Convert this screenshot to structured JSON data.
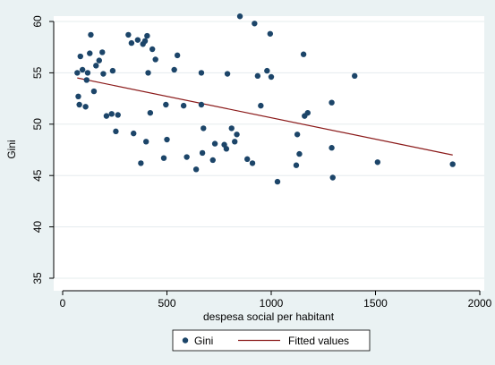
{
  "chart_data": {
    "type": "scatter",
    "title": "",
    "xlabel": "despesa social per habitant",
    "ylabel": "Gini",
    "xlim": [
      0,
      2000
    ],
    "ylim": [
      35,
      60
    ],
    "x_ticks": [
      0,
      500,
      1000,
      1500,
      2000
    ],
    "y_ticks": [
      35,
      40,
      45,
      50,
      55,
      60
    ],
    "grid": true,
    "legend_position": "bottom",
    "colors": {
      "background": "#eaf2f3",
      "plot_area": "#ffffff",
      "grid": "#e5ecee",
      "scatter": "#1c4569",
      "fit_line": "#8b1a1a"
    },
    "series": [
      {
        "name": "Gini",
        "kind": "scatter",
        "points": [
          [
            70,
            55.0
          ],
          [
            75,
            52.7
          ],
          [
            80,
            51.9
          ],
          [
            85,
            56.6
          ],
          [
            95,
            55.3
          ],
          [
            110,
            51.7
          ],
          [
            115,
            54.3
          ],
          [
            120,
            55.0
          ],
          [
            130,
            56.9
          ],
          [
            135,
            58.7
          ],
          [
            150,
            53.2
          ],
          [
            160,
            55.7
          ],
          [
            175,
            56.2
          ],
          [
            190,
            57.0
          ],
          [
            195,
            54.9
          ],
          [
            210,
            50.8
          ],
          [
            235,
            51.0
          ],
          [
            240,
            55.2
          ],
          [
            255,
            49.3
          ],
          [
            265,
            50.9
          ],
          [
            315,
            58.7
          ],
          [
            330,
            57.9
          ],
          [
            340,
            49.1
          ],
          [
            360,
            58.2
          ],
          [
            375,
            46.2
          ],
          [
            385,
            57.8
          ],
          [
            395,
            58.1
          ],
          [
            400,
            48.3
          ],
          [
            405,
            58.6
          ],
          [
            410,
            55.0
          ],
          [
            420,
            51.1
          ],
          [
            430,
            57.3
          ],
          [
            445,
            56.3
          ],
          [
            485,
            46.7
          ],
          [
            495,
            51.9
          ],
          [
            500,
            48.5
          ],
          [
            535,
            55.3
          ],
          [
            550,
            56.7
          ],
          [
            580,
            51.8
          ],
          [
            595,
            46.8
          ],
          [
            640,
            45.6
          ],
          [
            665,
            55.0
          ],
          [
            665,
            51.9
          ],
          [
            670,
            47.2
          ],
          [
            675,
            49.6
          ],
          [
            720,
            46.5
          ],
          [
            730,
            48.1
          ],
          [
            775,
            48.0
          ],
          [
            785,
            47.6
          ],
          [
            790,
            54.9
          ],
          [
            810,
            49.6
          ],
          [
            825,
            48.3
          ],
          [
            835,
            49.0
          ],
          [
            850,
            60.5
          ],
          [
            885,
            46.6
          ],
          [
            910,
            46.2
          ],
          [
            920,
            59.8
          ],
          [
            935,
            54.7
          ],
          [
            950,
            51.8
          ],
          [
            980,
            55.2
          ],
          [
            995,
            58.8
          ],
          [
            1000,
            54.6
          ],
          [
            1030,
            44.4
          ],
          [
            1120,
            46.0
          ],
          [
            1125,
            49.0
          ],
          [
            1135,
            47.1
          ],
          [
            1155,
            56.8
          ],
          [
            1160,
            50.8
          ],
          [
            1175,
            51.1
          ],
          [
            1290,
            47.7
          ],
          [
            1290,
            52.1
          ],
          [
            1295,
            44.8
          ],
          [
            1400,
            54.7
          ],
          [
            1510,
            46.3
          ],
          [
            1870,
            46.1
          ]
        ]
      },
      {
        "name": "Fitted values",
        "kind": "line",
        "points": [
          [
            70,
            54.5
          ],
          [
            1870,
            47.0
          ]
        ]
      }
    ]
  }
}
